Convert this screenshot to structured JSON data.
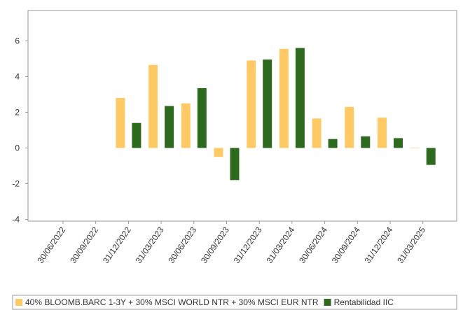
{
  "chart_data": {
    "type": "bar",
    "categories": [
      "30/06/2022",
      "30/09/2022",
      "31/12/2022",
      "31/03/2023",
      "30/06/2023",
      "30/09/2023",
      "31/12/2023",
      "31/03/2024",
      "30/06/2024",
      "30/09/2024",
      "31/12/2024",
      "31/03/2025"
    ],
    "series": [
      {
        "name": "40% BLOOMB.BARC 1-3Y + 30% MSCI WORLD NTR + 30% MSCI EUR NTR",
        "color": "#ffc966",
        "values": [
          null,
          null,
          2.8,
          4.65,
          2.5,
          -0.5,
          4.9,
          5.55,
          1.65,
          2.3,
          1.7,
          0.02
        ]
      },
      {
        "name": "Rentabilidad IIC",
        "color": "#2d6a1e",
        "values": [
          null,
          null,
          1.4,
          2.35,
          3.35,
          -1.8,
          4.95,
          5.6,
          0.5,
          0.65,
          0.55,
          -0.95
        ]
      }
    ],
    "ylim": [
      -4.1,
      7.7
    ],
    "yticks": [
      -4,
      -2,
      0,
      2,
      4,
      6
    ]
  }
}
